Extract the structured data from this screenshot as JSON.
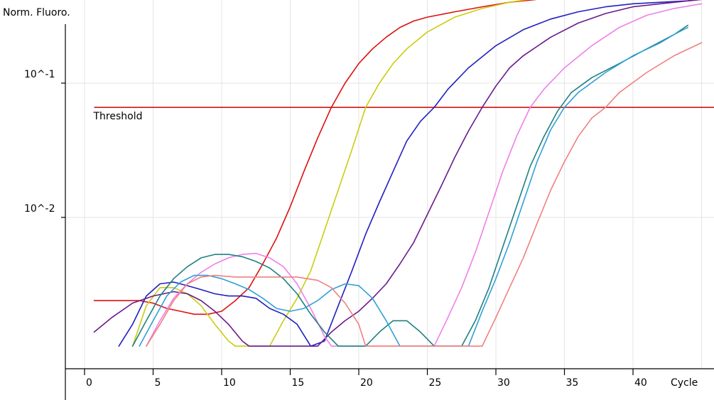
{
  "chart_data": {
    "type": "line",
    "ylabel": "Norm. Fluoro.",
    "xlabel": "Cycle",
    "yscale": "log",
    "grid": true,
    "xlim": [
      0,
      45
    ],
    "ylim": [
      0.0011,
      0.65
    ],
    "xticks": [
      0,
      5,
      10,
      15,
      20,
      25,
      30,
      35,
      40
    ],
    "xtick_labels": [
      "0",
      "5",
      "10",
      "15",
      "20",
      "25",
      "30",
      "35",
      "40"
    ],
    "yticks": [
      0.1,
      0.01
    ],
    "ytick_labels": [
      "10^-1",
      "10^-2"
    ],
    "threshold": {
      "label": "Threshold",
      "value": 0.066,
      "color": "#cc0000",
      "x_start": 0.7
    },
    "series": [
      {
        "color": "#dd1010",
        "points": [
          [
            0.7,
            0.0024
          ],
          [
            4,
            0.0024
          ],
          [
            5,
            0.0023
          ],
          [
            6,
            0.0021
          ],
          [
            7,
            0.002
          ],
          [
            8,
            0.0019
          ],
          [
            9,
            0.0019
          ],
          [
            10,
            0.002
          ],
          [
            11,
            0.0024
          ],
          [
            12,
            0.003
          ],
          [
            13,
            0.0045
          ],
          [
            14,
            0.007
          ],
          [
            15,
            0.012
          ],
          [
            16,
            0.022
          ],
          [
            17,
            0.039
          ],
          [
            18,
            0.066
          ],
          [
            19,
            0.1
          ],
          [
            20,
            0.14
          ],
          [
            21,
            0.18
          ],
          [
            22,
            0.22
          ],
          [
            23,
            0.26
          ],
          [
            24,
            0.29
          ],
          [
            25,
            0.31
          ],
          [
            27,
            0.34
          ],
          [
            29,
            0.37
          ],
          [
            31,
            0.4
          ],
          [
            33,
            0.42
          ],
          [
            35,
            0.44
          ],
          [
            37,
            0.45
          ],
          [
            39,
            0.46
          ]
        ]
      },
      {
        "color": "#cccc10",
        "points": [
          [
            3.5,
            0.0011
          ],
          [
            4.5,
            0.0022
          ],
          [
            5.5,
            0.003
          ],
          [
            6.5,
            0.003
          ],
          [
            7.5,
            0.0027
          ],
          [
            8.5,
            0.0022
          ],
          [
            9.5,
            0.0016
          ],
          [
            10.5,
            0.0012
          ],
          [
            11,
            0.0011
          ],
          [
            13.5,
            0.0011
          ],
          [
            14.5,
            0.0017
          ],
          [
            15.5,
            0.0025
          ],
          [
            16.5,
            0.004
          ],
          [
            17.5,
            0.008
          ],
          [
            18.5,
            0.016
          ],
          [
            19.5,
            0.032
          ],
          [
            20.5,
            0.066
          ],
          [
            21.5,
            0.1
          ],
          [
            22.5,
            0.14
          ],
          [
            23.5,
            0.18
          ],
          [
            25,
            0.24
          ],
          [
            27,
            0.31
          ],
          [
            29,
            0.36
          ],
          [
            31,
            0.4
          ],
          [
            33,
            0.43
          ],
          [
            35,
            0.45
          ],
          [
            37,
            0.46
          ],
          [
            39,
            0.465
          ],
          [
            41,
            0.47
          ],
          [
            45,
            0.47
          ]
        ]
      },
      {
        "color": "#2020c0",
        "points": [
          [
            2.5,
            0.0011
          ],
          [
            3.5,
            0.0016
          ],
          [
            4.5,
            0.0026
          ],
          [
            5.5,
            0.0032
          ],
          [
            6.5,
            0.0033
          ],
          [
            7.5,
            0.0031
          ],
          [
            8.5,
            0.0029
          ],
          [
            9.5,
            0.0027
          ],
          [
            10.5,
            0.0026
          ],
          [
            11.5,
            0.0026
          ],
          [
            12.5,
            0.0025
          ],
          [
            13.5,
            0.0021
          ],
          [
            14.5,
            0.0019
          ],
          [
            15.5,
            0.0016
          ],
          [
            16.5,
            0.0011
          ],
          [
            17.5,
            0.0012
          ],
          [
            18.5,
            0.0022
          ],
          [
            19.5,
            0.004
          ],
          [
            20.5,
            0.0075
          ],
          [
            21.5,
            0.013
          ],
          [
            22.5,
            0.022
          ],
          [
            23.5,
            0.037
          ],
          [
            24.5,
            0.052
          ],
          [
            25.5,
            0.066
          ],
          [
            26.5,
            0.09
          ],
          [
            28,
            0.13
          ],
          [
            30,
            0.19
          ],
          [
            32,
            0.25
          ],
          [
            34,
            0.3
          ],
          [
            36,
            0.34
          ],
          [
            38,
            0.37
          ],
          [
            40,
            0.39
          ],
          [
            42,
            0.4
          ],
          [
            44,
            0.41
          ],
          [
            45,
            0.42
          ]
        ]
      },
      {
        "color": "#6a1a8a",
        "points": [
          [
            0.7,
            0.0014
          ],
          [
            2,
            0.0018
          ],
          [
            3.5,
            0.0023
          ],
          [
            5,
            0.0026
          ],
          [
            6.5,
            0.0028
          ],
          [
            7.5,
            0.0027
          ],
          [
            8.5,
            0.0024
          ],
          [
            9.5,
            0.002
          ],
          [
            10.5,
            0.0016
          ],
          [
            11.5,
            0.0012
          ],
          [
            12,
            0.0011
          ],
          [
            17,
            0.0011
          ],
          [
            18,
            0.0014
          ],
          [
            19,
            0.0017
          ],
          [
            20,
            0.002
          ],
          [
            21,
            0.0025
          ],
          [
            22,
            0.0032
          ],
          [
            23,
            0.0045
          ],
          [
            24,
            0.0065
          ],
          [
            25,
            0.0105
          ],
          [
            26,
            0.017
          ],
          [
            27,
            0.028
          ],
          [
            28,
            0.044
          ],
          [
            29,
            0.066
          ],
          [
            30,
            0.095
          ],
          [
            31,
            0.13
          ],
          [
            32,
            0.16
          ],
          [
            34,
            0.22
          ],
          [
            36,
            0.28
          ],
          [
            38,
            0.33
          ],
          [
            40,
            0.37
          ],
          [
            42,
            0.39
          ],
          [
            44,
            0.41
          ],
          [
            45,
            0.42
          ]
        ]
      },
      {
        "color": "#ee80e8",
        "points": [
          [
            4.5,
            0.0011
          ],
          [
            5.5,
            0.0017
          ],
          [
            6.5,
            0.0025
          ],
          [
            7.5,
            0.0032
          ],
          [
            8.5,
            0.0039
          ],
          [
            9.5,
            0.0045
          ],
          [
            10.5,
            0.005
          ],
          [
            11.5,
            0.0053
          ],
          [
            12.5,
            0.0054
          ],
          [
            13.5,
            0.005
          ],
          [
            14.5,
            0.0043
          ],
          [
            15.5,
            0.0032
          ],
          [
            16.5,
            0.0021
          ],
          [
            17.5,
            0.0013
          ],
          [
            18,
            0.0011
          ],
          [
            25.5,
            0.0011
          ],
          [
            26.5,
            0.0018
          ],
          [
            27.5,
            0.003
          ],
          [
            28.5,
            0.0055
          ],
          [
            29.5,
            0.011
          ],
          [
            30.5,
            0.022
          ],
          [
            31.5,
            0.04
          ],
          [
            32.5,
            0.066
          ],
          [
            33.5,
            0.09
          ],
          [
            35,
            0.13
          ],
          [
            37,
            0.19
          ],
          [
            39,
            0.26
          ],
          [
            41,
            0.32
          ],
          [
            43,
            0.36
          ],
          [
            45,
            0.39
          ]
        ]
      },
      {
        "color": "#208080",
        "points": [
          [
            3.5,
            0.0011
          ],
          [
            4.5,
            0.0017
          ],
          [
            5.5,
            0.0026
          ],
          [
            6.5,
            0.0035
          ],
          [
            7.5,
            0.0043
          ],
          [
            8.5,
            0.005
          ],
          [
            9.5,
            0.0053
          ],
          [
            10.5,
            0.0053
          ],
          [
            11.5,
            0.0051
          ],
          [
            12.5,
            0.0047
          ],
          [
            13.5,
            0.0042
          ],
          [
            14.5,
            0.0035
          ],
          [
            15.5,
            0.0027
          ],
          [
            16.5,
            0.0019
          ],
          [
            17.5,
            0.0014
          ],
          [
            18.5,
            0.0011
          ],
          [
            20.5,
            0.0011
          ],
          [
            21.5,
            0.0014
          ],
          [
            22.5,
            0.0017
          ],
          [
            23.5,
            0.0017
          ],
          [
            24.5,
            0.0014
          ],
          [
            25.5,
            0.0011
          ],
          [
            27.5,
            0.0011
          ],
          [
            28.5,
            0.0017
          ],
          [
            29.5,
            0.003
          ],
          [
            30.5,
            0.006
          ],
          [
            31.5,
            0.012
          ],
          [
            32.5,
            0.024
          ],
          [
            33.5,
            0.04
          ],
          [
            34.5,
            0.062
          ],
          [
            35.5,
            0.085
          ],
          [
            37,
            0.11
          ],
          [
            39,
            0.14
          ],
          [
            41,
            0.18
          ],
          [
            43,
            0.23
          ],
          [
            44,
            0.27
          ]
        ]
      },
      {
        "color": "#30a0d8",
        "points": [
          [
            4,
            0.0011
          ],
          [
            5,
            0.0017
          ],
          [
            6,
            0.0026
          ],
          [
            7,
            0.0033
          ],
          [
            8,
            0.0037
          ],
          [
            9,
            0.0037
          ],
          [
            10,
            0.0035
          ],
          [
            11,
            0.0032
          ],
          [
            12,
            0.0029
          ],
          [
            13,
            0.0025
          ],
          [
            14,
            0.0021
          ],
          [
            15,
            0.002
          ],
          [
            16,
            0.0021
          ],
          [
            17,
            0.0024
          ],
          [
            18,
            0.0029
          ],
          [
            19,
            0.0032
          ],
          [
            20,
            0.0031
          ],
          [
            21,
            0.0025
          ],
          [
            22,
            0.0017
          ],
          [
            23,
            0.0011
          ],
          [
            28,
            0.0011
          ],
          [
            29,
            0.002
          ],
          [
            30,
            0.0035
          ],
          [
            31,
            0.0065
          ],
          [
            32,
            0.013
          ],
          [
            33,
            0.026
          ],
          [
            34,
            0.045
          ],
          [
            35,
            0.066
          ],
          [
            36,
            0.085
          ],
          [
            38,
            0.12
          ],
          [
            40,
            0.16
          ],
          [
            42,
            0.2
          ],
          [
            43,
            0.23
          ],
          [
            44,
            0.26
          ]
        ]
      },
      {
        "color": "#f08080",
        "points": [
          [
            4.5,
            0.0011
          ],
          [
            5.5,
            0.0016
          ],
          [
            6.5,
            0.0024
          ],
          [
            7.5,
            0.0032
          ],
          [
            8.5,
            0.0036
          ],
          [
            9.5,
            0.0037
          ],
          [
            11,
            0.0036
          ],
          [
            12.5,
            0.0036
          ],
          [
            14,
            0.0036
          ],
          [
            15.5,
            0.0036
          ],
          [
            17,
            0.0034
          ],
          [
            18,
            0.003
          ],
          [
            19,
            0.0023
          ],
          [
            20,
            0.0016
          ],
          [
            20.5,
            0.0011
          ],
          [
            29,
            0.0011
          ],
          [
            30,
            0.0018
          ],
          [
            31,
            0.003
          ],
          [
            32,
            0.005
          ],
          [
            33,
            0.009
          ],
          [
            34,
            0.016
          ],
          [
            35,
            0.026
          ],
          [
            36,
            0.04
          ],
          [
            37,
            0.055
          ],
          [
            38,
            0.066
          ],
          [
            39,
            0.085
          ],
          [
            41,
            0.12
          ],
          [
            43,
            0.16
          ],
          [
            45,
            0.2
          ]
        ]
      }
    ]
  }
}
